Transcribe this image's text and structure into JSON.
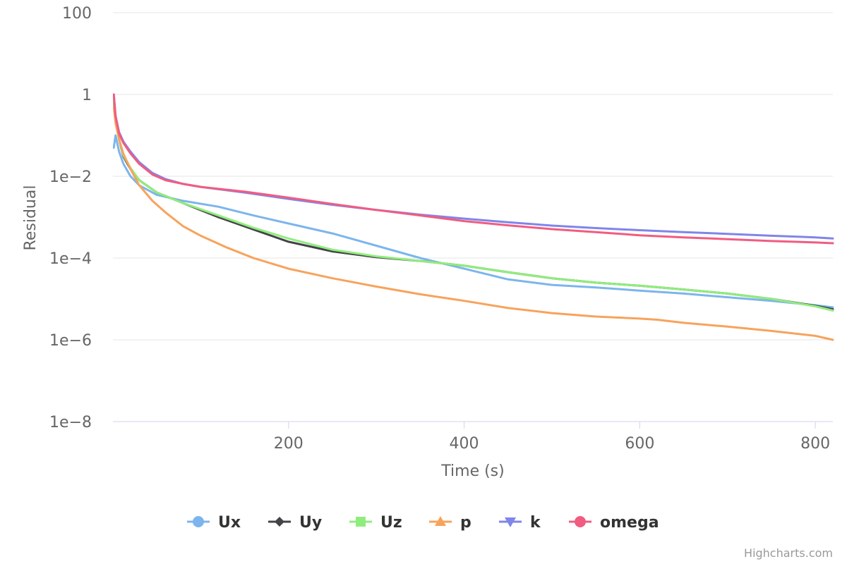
{
  "chart_data": {
    "type": "line",
    "xlabel": "Time (s)",
    "ylabel": "Residual",
    "y_scale": "log",
    "xlim": [
      0,
      820
    ],
    "ylim": [
      1e-08,
      100
    ],
    "x_ticks": [
      200,
      400,
      600,
      800
    ],
    "x_tick_labels": [
      "200",
      "400",
      "600",
      "800"
    ],
    "y_ticks": [
      100,
      1,
      0.01,
      0.0001,
      1e-06,
      1e-08
    ],
    "y_tick_labels": [
      "100",
      "1",
      "1e−2",
      "1e−4",
      "1e−6",
      "1e−8"
    ],
    "grid": true,
    "legend_position": "bottom-center",
    "series": [
      {
        "name": "Ux",
        "color": "#7cb5ec",
        "marker": "circle",
        "x": [
          1,
          3,
          7,
          12,
          20,
          30,
          50,
          80,
          120,
          160,
          200,
          250,
          300,
          350,
          400,
          450,
          500,
          550,
          600,
          650,
          700,
          750,
          800,
          820
        ],
        "y": [
          0.05,
          0.1,
          0.04,
          0.02,
          0.01,
          0.006,
          0.0035,
          0.0025,
          0.0018,
          0.0011,
          0.0007,
          0.0004,
          0.0002,
          0.0001,
          5.5e-05,
          3e-05,
          2.2e-05,
          1.9e-05,
          1.6e-05,
          1.35e-05,
          1.1e-05,
          9e-06,
          7e-06,
          6.2e-06
        ]
      },
      {
        "name": "Uy",
        "color": "#434348",
        "marker": "diamond",
        "x": [
          1,
          3,
          7,
          12,
          20,
          30,
          50,
          80,
          120,
          160,
          200,
          250,
          300,
          350,
          400,
          450,
          500,
          550,
          600,
          650,
          700,
          750,
          800,
          820
        ],
        "y": [
          0.7,
          0.25,
          0.08,
          0.03,
          0.015,
          0.008,
          0.004,
          0.0022,
          0.001,
          0.0005,
          0.00025,
          0.000145,
          0.000105,
          8.5e-05,
          6.5e-05,
          4.5e-05,
          3.2e-05,
          2.5e-05,
          2.1e-05,
          1.7e-05,
          1.35e-05,
          1e-05,
          6.8e-06,
          5.6e-06
        ]
      },
      {
        "name": "Uz",
        "color": "#90ed7d",
        "marker": "square",
        "x": [
          1,
          3,
          7,
          12,
          20,
          30,
          50,
          80,
          120,
          160,
          200,
          250,
          300,
          350,
          400,
          450,
          500,
          550,
          600,
          650,
          700,
          750,
          800,
          820
        ],
        "y": [
          0.7,
          0.25,
          0.08,
          0.032,
          0.016,
          0.008,
          0.004,
          0.0022,
          0.0011,
          0.00055,
          0.0003,
          0.00016,
          0.00011,
          8.5e-05,
          6.5e-05,
          4.5e-05,
          3.2e-05,
          2.5e-05,
          2.1e-05,
          1.7e-05,
          1.35e-05,
          1e-05,
          6.6e-06,
          5.2e-06
        ]
      },
      {
        "name": "p",
        "color": "#f7a35c",
        "marker": "triangle",
        "x": [
          1,
          3,
          7,
          12,
          20,
          30,
          45,
          60,
          80,
          100,
          130,
          160,
          200,
          250,
          300,
          350,
          400,
          450,
          500,
          550,
          600,
          620,
          650,
          700,
          750,
          800,
          820
        ],
        "y": [
          0.5,
          0.2,
          0.08,
          0.035,
          0.015,
          0.006,
          0.0025,
          0.0013,
          0.0006,
          0.00035,
          0.00018,
          0.0001,
          5.5e-05,
          3.2e-05,
          2e-05,
          1.3e-05,
          9e-06,
          6e-06,
          4.5e-06,
          3.7e-06,
          3.3e-06,
          3.1e-06,
          2.6e-06,
          2.1e-06,
          1.65e-06,
          1.25e-06,
          1e-06
        ]
      },
      {
        "name": "k",
        "color": "#8085e9",
        "marker": "triangle-down",
        "x": [
          1,
          3,
          7,
          12,
          20,
          30,
          45,
          60,
          80,
          100,
          150,
          200,
          250,
          300,
          350,
          400,
          450,
          500,
          550,
          600,
          650,
          700,
          750,
          800,
          820
        ],
        "y": [
          1,
          0.3,
          0.12,
          0.07,
          0.04,
          0.022,
          0.012,
          0.0085,
          0.0065,
          0.0055,
          0.004,
          0.0028,
          0.002,
          0.0015,
          0.00115,
          0.00092,
          0.00075,
          0.00062,
          0.00054,
          0.00048,
          0.00043,
          0.00039,
          0.00035,
          0.00032,
          0.0003
        ]
      },
      {
        "name": "omega",
        "color": "#f15c80",
        "marker": "circle",
        "x": [
          1,
          3,
          7,
          12,
          20,
          30,
          45,
          60,
          80,
          100,
          150,
          200,
          250,
          300,
          350,
          400,
          450,
          500,
          550,
          600,
          650,
          700,
          750,
          800,
          820
        ],
        "y": [
          1,
          0.3,
          0.11,
          0.065,
          0.036,
          0.02,
          0.011,
          0.008,
          0.0065,
          0.0055,
          0.0042,
          0.003,
          0.0021,
          0.0015,
          0.0011,
          0.0008,
          0.00063,
          0.00051,
          0.00043,
          0.00036,
          0.00032,
          0.00029,
          0.00026,
          0.00024,
          0.00023
        ]
      }
    ]
  },
  "credits": "Highcharts.com"
}
